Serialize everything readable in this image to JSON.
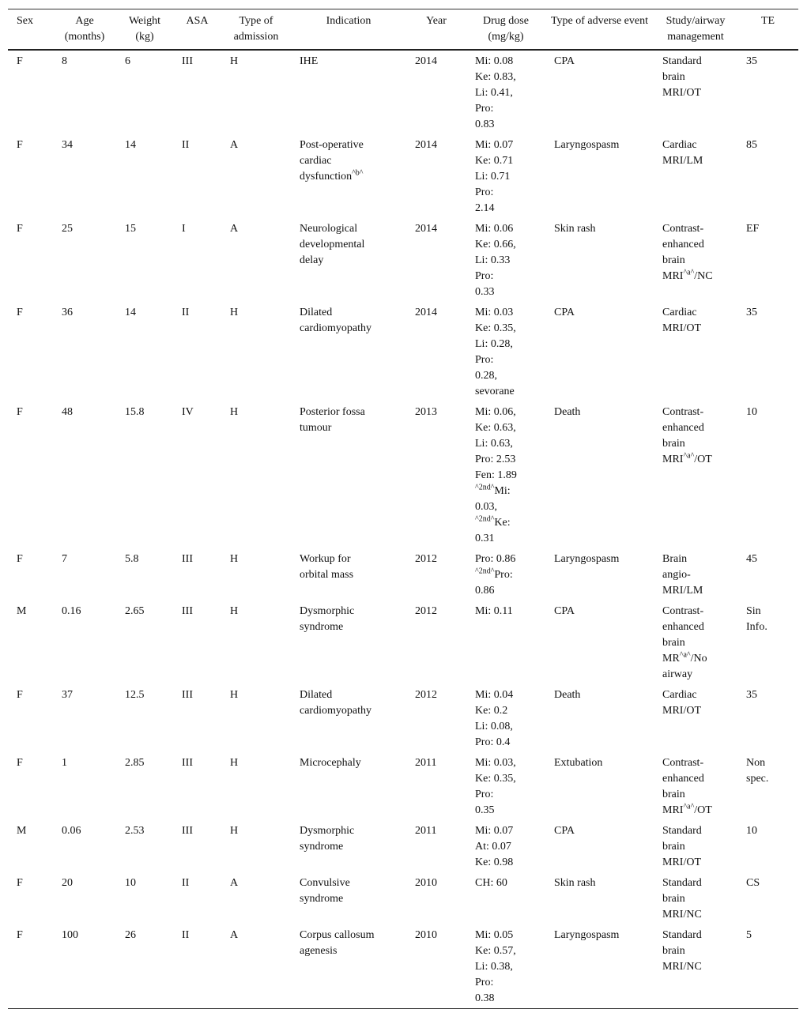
{
  "table": {
    "headers": [
      "Sex",
      "Age (months)",
      "Weight (kg)",
      "ASA",
      "Type of admission",
      "Indication",
      "Year",
      "Drug dose (mg/kg)",
      "Type of adverse event",
      "Study/airway management",
      "TE"
    ],
    "rows": [
      [
        [
          "F"
        ],
        [
          "8"
        ],
        [
          "6"
        ],
        [
          "III"
        ],
        [
          "H"
        ],
        [
          "IHE"
        ],
        [
          "2014"
        ],
        [
          "Mi: 0.08",
          "Ke: 0.83,",
          "Li: 0.41,",
          "Pro:",
          "0.83"
        ],
        [
          "CPA"
        ],
        [
          "Standard",
          "brain",
          "MRI/OT"
        ],
        [
          "35"
        ]
      ],
      [
        [
          "F"
        ],
        [
          "34"
        ],
        [
          "14"
        ],
        [
          "II"
        ],
        [
          "A"
        ],
        [
          "Post-operative",
          "cardiac",
          "dysfunction^b^"
        ],
        [
          "2014"
        ],
        [
          "Mi: 0.07",
          "Ke: 0.71",
          "Li: 0.71",
          "Pro:",
          "2.14"
        ],
        [
          "Laryngospasm"
        ],
        [
          "Cardiac",
          "MRI/LM"
        ],
        [
          "85"
        ]
      ],
      [
        [
          "F"
        ],
        [
          "25"
        ],
        [
          "15"
        ],
        [
          "I"
        ],
        [
          "A"
        ],
        [
          "Neurological",
          "developmental",
          "delay"
        ],
        [
          "2014"
        ],
        [
          "Mi: 0.06",
          "Ke: 0.66,",
          "Li: 0.33",
          "Pro:",
          "0.33"
        ],
        [
          "Skin rash"
        ],
        [
          "Contrast-",
          "enhanced",
          "brain",
          "MRI^a^/NC"
        ],
        [
          "EF"
        ]
      ],
      [
        [
          "F"
        ],
        [
          "36"
        ],
        [
          "14"
        ],
        [
          "II"
        ],
        [
          "H"
        ],
        [
          "Dilated",
          "cardiomyopathy"
        ],
        [
          "2014"
        ],
        [
          "Mi: 0.03",
          "Ke: 0.35,",
          "Li: 0.28,",
          "Pro:",
          "0.28,",
          "sevorane"
        ],
        [
          "CPA"
        ],
        [
          "Cardiac",
          "MRI/OT"
        ],
        [
          "35"
        ]
      ],
      [
        [
          "F"
        ],
        [
          "48"
        ],
        [
          "15.8"
        ],
        [
          "IV"
        ],
        [
          "H"
        ],
        [
          "Posterior fossa",
          "tumour"
        ],
        [
          "2013"
        ],
        [
          "Mi: 0.06,",
          "Ke: 0.63,",
          "Li: 0.63,",
          "Pro: 2.53",
          "Fen: 1.89",
          "^2nd^Mi:",
          "0.03,",
          "^2nd^Ke:",
          "0.31"
        ],
        [
          "Death"
        ],
        [
          "Contrast-",
          "enhanced",
          "brain",
          "MRI^a^/OT"
        ],
        [
          "10"
        ]
      ],
      [
        [
          "F"
        ],
        [
          "7"
        ],
        [
          "5.8"
        ],
        [
          "III"
        ],
        [
          "H"
        ],
        [
          "Workup for",
          "orbital mass"
        ],
        [
          "2012"
        ],
        [
          "Pro: 0.86",
          "^2nd^Pro:",
          "0.86"
        ],
        [
          "Laryngospasm"
        ],
        [
          "Brain",
          "angio-",
          "MRI/LM"
        ],
        [
          "45"
        ]
      ],
      [
        [
          "M"
        ],
        [
          "0.16"
        ],
        [
          "2.65"
        ],
        [
          "III"
        ],
        [
          "H"
        ],
        [
          "Dysmorphic",
          "syndrome"
        ],
        [
          "2012"
        ],
        [
          "Mi: 0.11"
        ],
        [
          "CPA"
        ],
        [
          "Contrast-",
          "enhanced",
          "brain",
          "MR^a^/No",
          "airway"
        ],
        [
          "Sin",
          "Info."
        ]
      ],
      [
        [
          "F"
        ],
        [
          "37"
        ],
        [
          "12.5"
        ],
        [
          "III"
        ],
        [
          "H"
        ],
        [
          "Dilated",
          "cardiomyopathy"
        ],
        [
          "2012"
        ],
        [
          "Mi: 0.04",
          "Ke: 0.2",
          "Li: 0.08,",
          "Pro: 0.4"
        ],
        [
          "Death"
        ],
        [
          "Cardiac",
          "MRI/OT"
        ],
        [
          "35"
        ]
      ],
      [
        [
          "F"
        ],
        [
          "1"
        ],
        [
          "2.85"
        ],
        [
          "III"
        ],
        [
          "H"
        ],
        [
          "Microcephaly"
        ],
        [
          "2011"
        ],
        [
          "Mi: 0.03,",
          "Ke: 0.35,",
          "Pro:",
          "0.35"
        ],
        [
          "Extubation"
        ],
        [
          "Contrast-",
          "enhanced",
          "brain",
          "MRI^a^/OT"
        ],
        [
          "Non",
          "spec."
        ]
      ],
      [
        [
          "M"
        ],
        [
          "0.06"
        ],
        [
          "2.53"
        ],
        [
          "III"
        ],
        [
          "H"
        ],
        [
          "Dysmorphic",
          "syndrome"
        ],
        [
          "2011"
        ],
        [
          "Mi: 0.07",
          "At: 0.07",
          "Ke: 0.98"
        ],
        [
          "CPA"
        ],
        [
          "Standard",
          "brain",
          "MRI/OT"
        ],
        [
          "10"
        ]
      ],
      [
        [
          "F"
        ],
        [
          "20"
        ],
        [
          "10"
        ],
        [
          "II"
        ],
        [
          "A"
        ],
        [
          "Convulsive",
          "syndrome"
        ],
        [
          "2010"
        ],
        [
          "CH: 60"
        ],
        [
          "Skin rash"
        ],
        [
          "Standard",
          "brain",
          "MRI/NC"
        ],
        [
          "CS"
        ]
      ],
      [
        [
          "F"
        ],
        [
          "100"
        ],
        [
          "26"
        ],
        [
          "II"
        ],
        [
          "A"
        ],
        [
          "Corpus callosum",
          "agenesis"
        ],
        [
          "2010"
        ],
        [
          "Mi: 0.05",
          "Ke: 0.57,",
          "Li: 0.38,",
          "Pro:",
          "0.38"
        ],
        [
          "Laryngospasm"
        ],
        [
          "Standard",
          "brain",
          "MRI/NC"
        ],
        [
          "5"
        ]
      ]
    ]
  }
}
